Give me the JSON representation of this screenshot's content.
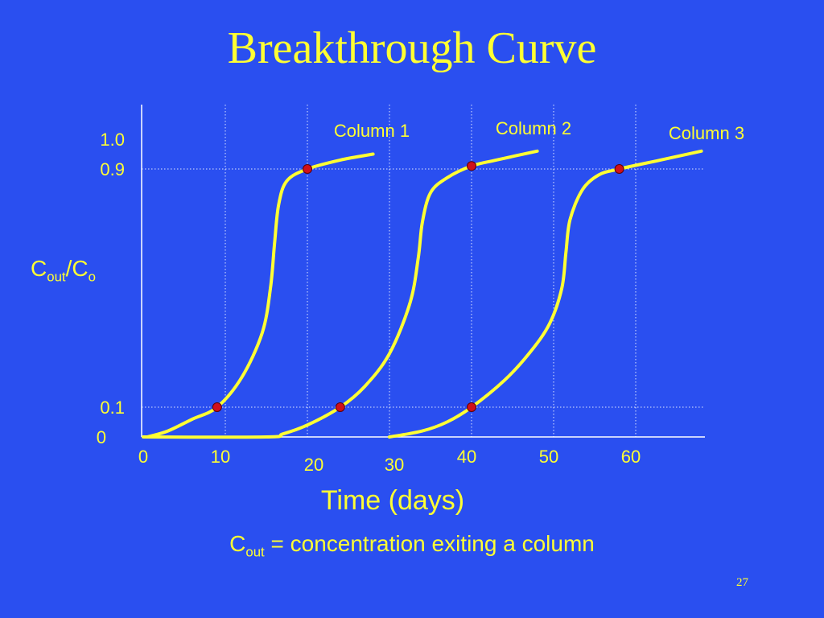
{
  "slide": {
    "title": "Breakthrough Curve",
    "page_number": "27",
    "caption": {
      "symbol": "C",
      "subscript": "out",
      "text": " = concentration exiting a column"
    }
  },
  "colors": {
    "background": "#2a4ff0",
    "text": "#ffff33",
    "curve": "#ffff33",
    "point": "#d0101a",
    "axis": "#ffffff",
    "gridline": "#dde6ff"
  },
  "chart_data": {
    "type": "line",
    "title": "Breakthrough Curve",
    "xlabel": "Time (days)",
    "ylabel": {
      "main": "C",
      "sub1": "out",
      "sep": "/C",
      "sub2": "o"
    },
    "xlim": [
      0,
      68
    ],
    "ylim": [
      0,
      1.0
    ],
    "x_ticks": [
      0,
      10,
      20,
      30,
      40,
      50,
      60
    ],
    "x_tick_labels": [
      "0",
      "10",
      "20",
      "30",
      "40",
      "50",
      "60"
    ],
    "y_ticks": [
      0,
      0.1,
      0.9,
      1.0
    ],
    "y_tick_labels": [
      "0",
      "0.1",
      "0.9",
      "1.0"
    ],
    "vertical_gridlines": [
      10,
      20,
      30,
      40,
      50,
      60
    ],
    "reference_lines": [
      0.1,
      0.9
    ],
    "series": [
      {
        "name": "Column 1",
        "x": [
          0.5,
          3,
          6,
          9,
          12,
          14.5,
          15.5,
          16,
          16.5,
          17.5,
          20,
          24,
          28
        ],
        "y": [
          0.0,
          0.02,
          0.06,
          0.1,
          0.2,
          0.35,
          0.5,
          0.65,
          0.78,
          0.86,
          0.9,
          0.93,
          0.95
        ]
      },
      {
        "name": "Column 2",
        "x": [
          0,
          15,
          17,
          20,
          24,
          27,
          30,
          32.5,
          33.5,
          34,
          35,
          37,
          40,
          43,
          48
        ],
        "y": [
          0.0,
          0.0,
          0.01,
          0.04,
          0.1,
          0.17,
          0.28,
          0.45,
          0.6,
          0.72,
          0.82,
          0.87,
          0.91,
          0.93,
          0.96
        ]
      },
      {
        "name": "Column 3",
        "x": [
          30,
          34,
          37,
          40,
          44,
          47,
          49.5,
          51,
          51.5,
          52,
          53.5,
          55.5,
          58,
          63,
          68
        ],
        "y": [
          0.0,
          0.02,
          0.05,
          0.1,
          0.19,
          0.28,
          0.38,
          0.5,
          0.62,
          0.73,
          0.83,
          0.88,
          0.9,
          0.93,
          0.96
        ]
      }
    ],
    "points": [
      {
        "series": "Column 1",
        "x": 9,
        "y": 0.1
      },
      {
        "series": "Column 1",
        "x": 20,
        "y": 0.9
      },
      {
        "series": "Column 2",
        "x": 24,
        "y": 0.1
      },
      {
        "series": "Column 2",
        "x": 40,
        "y": 0.91
      },
      {
        "series": "Column 3",
        "x": 40,
        "y": 0.1
      },
      {
        "series": "Column 3",
        "x": 58,
        "y": 0.9
      }
    ],
    "grid": "vertical dotted lines and dotted reference lines at 0.1 and 0.9",
    "legend": "curve labels above the end of each curve"
  }
}
